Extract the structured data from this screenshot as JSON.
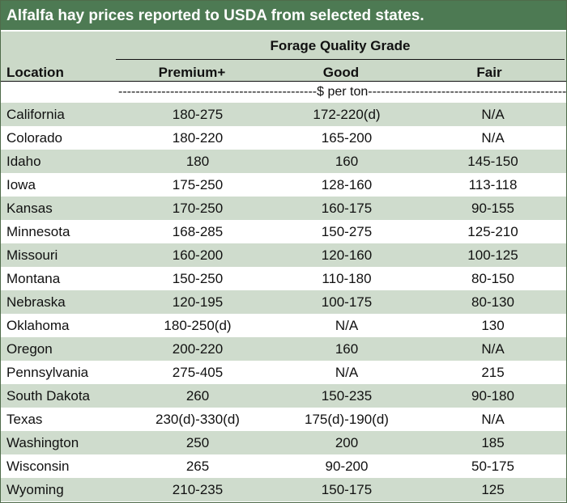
{
  "title": "Alfalfa hay prices reported to USDA from selected states.",
  "header": {
    "grade_title": "Forage Quality Grade",
    "location_label": "Location",
    "columns": [
      "Premium+",
      "Good",
      "Fair"
    ]
  },
  "unit_label": "----------------------------------------------$ per ton--------------------------------------------------",
  "colors": {
    "title_bar": "#4d7a53",
    "band": "#cfdccd",
    "header_band": "#cbd9c8"
  },
  "rows": [
    {
      "location": "California",
      "premium": "180-275",
      "good": "172-220(d)",
      "fair": "N/A"
    },
    {
      "location": "Colorado",
      "premium": "180-220",
      "good": "165-200",
      "fair": "N/A"
    },
    {
      "location": "Idaho",
      "premium": "180",
      "good": "160",
      "fair": "145-150"
    },
    {
      "location": "Iowa",
      "premium": "175-250",
      "good": "128-160",
      "fair": "113-118"
    },
    {
      "location": "Kansas",
      "premium": "170-250",
      "good": "160-175",
      "fair": "90-155"
    },
    {
      "location": "Minnesota",
      "premium": "168-285",
      "good": "150-275",
      "fair": "125-210"
    },
    {
      "location": "Missouri",
      "premium": "160-200",
      "good": "120-160",
      "fair": "100-125"
    },
    {
      "location": "Montana",
      "premium": "150-250",
      "good": "110-180",
      "fair": "80-150"
    },
    {
      "location": "Nebraska",
      "premium": "120-195",
      "good": "100-175",
      "fair": "80-130"
    },
    {
      "location": "Oklahoma",
      "premium": "180-250(d)",
      "good": "N/A",
      "fair": "130"
    },
    {
      "location": "Oregon",
      "premium": "200-220",
      "good": "160",
      "fair": "N/A"
    },
    {
      "location": "Pennsylvania",
      "premium": "275-405",
      "good": "N/A",
      "fair": "215"
    },
    {
      "location": "South Dakota",
      "premium": "260",
      "good": "150-235",
      "fair": "90-180"
    },
    {
      "location": "Texas",
      "premium": "230(d)-330(d)",
      "good": "175(d)-190(d)",
      "fair": "N/A"
    },
    {
      "location": "Washington",
      "premium": "250",
      "good": "200",
      "fair": "185"
    },
    {
      "location": "Wisconsin",
      "premium": "265",
      "good": "90-200",
      "fair": "50-175"
    },
    {
      "location": "Wyoming",
      "premium": "210-235",
      "good": "150-175",
      "fair": "125"
    }
  ]
}
